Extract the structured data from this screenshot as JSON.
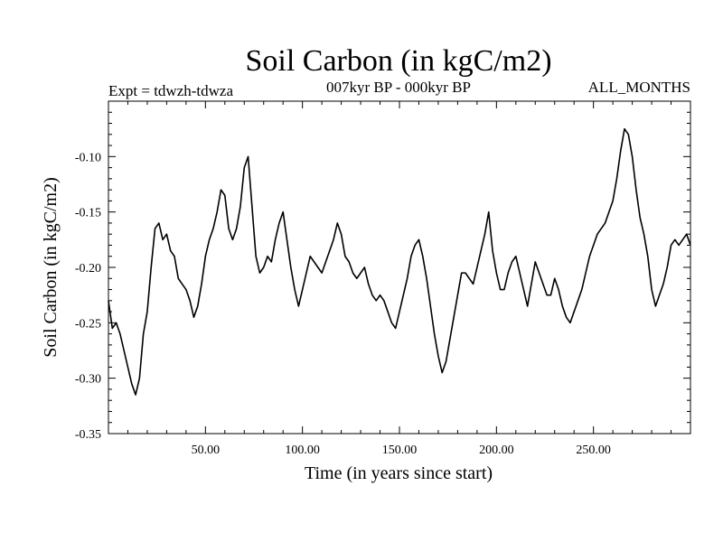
{
  "chart_data": {
    "type": "line",
    "title": "Soil Carbon (in kgC/m2)",
    "subtitle_left": "Expt = tdwzh-tdwza",
    "subtitle_center": "007kyr BP - 000kyr BP",
    "subtitle_right": "ALL_MONTHS",
    "xlabel": "Time (in years since start)",
    "ylabel": "Soil Carbon (in kgC/m2)",
    "xlim": [
      0,
      300
    ],
    "ylim": [
      -0.35,
      -0.05
    ],
    "x_ticks": [
      50,
      100,
      150,
      200,
      250
    ],
    "x_tick_labels": [
      "50.00",
      "100.00",
      "150.00",
      "200.00",
      "250.00"
    ],
    "y_ticks": [
      -0.35,
      -0.3,
      -0.25,
      -0.2,
      -0.15,
      -0.1
    ],
    "y_tick_labels": [
      "-0.35",
      "-0.30",
      "-0.25",
      "-0.20",
      "-0.15",
      "-0.10"
    ],
    "grid": false,
    "line_color": "#000000",
    "series": [
      {
        "x": [
          0,
          2,
          4,
          6,
          8,
          10,
          12,
          14,
          16,
          18,
          20,
          22,
          24,
          26,
          28,
          30,
          32,
          34,
          36,
          38,
          40,
          42,
          44,
          46,
          48,
          50,
          52,
          54,
          56,
          58,
          60,
          62,
          64,
          66,
          68,
          70,
          72,
          74,
          76,
          78,
          80,
          82,
          84,
          86,
          88,
          90,
          92,
          94,
          96,
          98,
          100,
          102,
          104,
          106,
          108,
          110,
          112,
          114,
          116,
          118,
          120,
          122,
          124,
          126,
          128,
          130,
          132,
          134,
          136,
          138,
          140,
          142,
          144,
          146,
          148,
          150,
          152,
          154,
          156,
          158,
          160,
          162,
          164,
          166,
          168,
          170,
          172,
          174,
          176,
          178,
          180,
          182,
          184,
          186,
          188,
          190,
          192,
          194,
          196,
          198,
          200,
          202,
          204,
          206,
          208,
          210,
          212,
          214,
          216,
          218,
          220,
          222,
          224,
          226,
          228,
          230,
          232,
          234,
          236,
          238,
          240,
          242,
          244,
          246,
          248,
          250,
          252,
          254,
          256,
          258,
          260,
          262,
          264,
          266,
          268,
          270,
          272,
          274,
          276,
          278,
          280,
          282,
          284,
          286,
          288,
          290,
          292,
          294,
          296,
          298,
          300
        ],
        "y": [
          -0.23,
          -0.255,
          -0.25,
          -0.26,
          -0.275,
          -0.29,
          -0.305,
          -0.315,
          -0.3,
          -0.26,
          -0.24,
          -0.2,
          -0.165,
          -0.16,
          -0.175,
          -0.17,
          -0.185,
          -0.19,
          -0.21,
          -0.215,
          -0.22,
          -0.23,
          -0.245,
          -0.235,
          -0.215,
          -0.19,
          -0.175,
          -0.165,
          -0.15,
          -0.13,
          -0.135,
          -0.165,
          -0.175,
          -0.165,
          -0.145,
          -0.11,
          -0.1,
          -0.145,
          -0.19,
          -0.205,
          -0.2,
          -0.19,
          -0.195,
          -0.175,
          -0.16,
          -0.15,
          -0.175,
          -0.2,
          -0.22,
          -0.235,
          -0.22,
          -0.205,
          -0.19,
          -0.195,
          -0.2,
          -0.205,
          -0.195,
          -0.185,
          -0.175,
          -0.16,
          -0.17,
          -0.19,
          -0.195,
          -0.205,
          -0.21,
          -0.205,
          -0.2,
          -0.215,
          -0.225,
          -0.23,
          -0.225,
          -0.23,
          -0.24,
          -0.25,
          -0.255,
          -0.24,
          -0.225,
          -0.21,
          -0.19,
          -0.18,
          -0.175,
          -0.19,
          -0.21,
          -0.235,
          -0.26,
          -0.28,
          -0.295,
          -0.285,
          -0.265,
          -0.245,
          -0.225,
          -0.205,
          -0.205,
          -0.21,
          -0.215,
          -0.2,
          -0.185,
          -0.17,
          -0.15,
          -0.185,
          -0.205,
          -0.22,
          -0.22,
          -0.205,
          -0.195,
          -0.19,
          -0.205,
          -0.22,
          -0.235,
          -0.215,
          -0.195,
          -0.205,
          -0.215,
          -0.225,
          -0.225,
          -0.21,
          -0.22,
          -0.235,
          -0.245,
          -0.25,
          -0.24,
          -0.23,
          -0.22,
          -0.205,
          -0.19,
          -0.18,
          -0.17,
          -0.165,
          -0.16,
          -0.15,
          -0.14,
          -0.12,
          -0.095,
          -0.075,
          -0.08,
          -0.1,
          -0.13,
          -0.155,
          -0.17,
          -0.19,
          -0.22,
          -0.235,
          -0.225,
          -0.215,
          -0.2,
          -0.18,
          -0.175,
          -0.18,
          -0.175,
          -0.17,
          -0.18
        ]
      }
    ]
  }
}
